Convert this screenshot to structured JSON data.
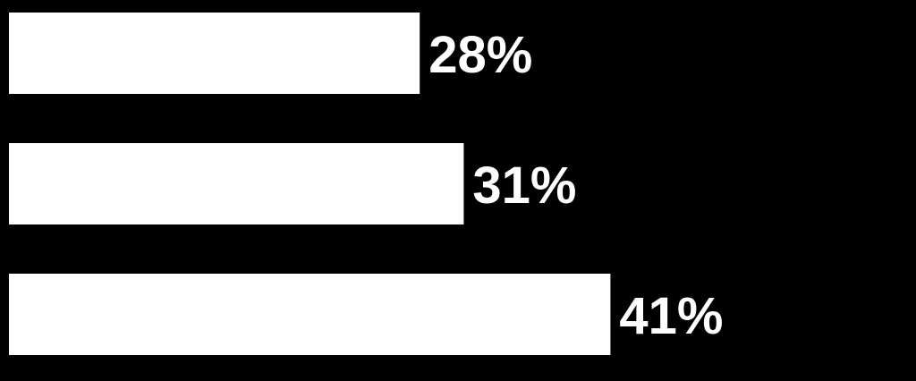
{
  "chart_data": {
    "type": "bar",
    "orientation": "horizontal",
    "categories": [
      null,
      null,
      null
    ],
    "values": [
      28,
      31,
      41
    ],
    "value_labels": [
      "28%",
      "31%",
      "41%"
    ],
    "color": "#ffffff"
  }
}
